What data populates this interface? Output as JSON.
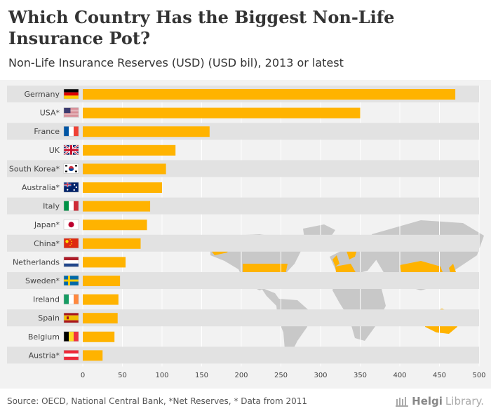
{
  "header": {
    "title": "Which Country Has the Biggest Non-Life Insurance Pot?",
    "subtitle": "Non-Life Insurance Reserves (USD) (USD bil), 2013 or latest"
  },
  "footer": {
    "source": "Source: OECD, National Central Bank, *Net Reserves, * Data from 2011",
    "brand_bold": "Helgi",
    "brand_rest": "Library."
  },
  "colors": {
    "bar": "#ffb300",
    "row_band": "#e2e2e2",
    "map_land": "#c8c8c8",
    "map_highlight": "#ffb300"
  },
  "chart_data": {
    "type": "bar",
    "orientation": "horizontal",
    "title": "Non-Life Insurance Reserves (USD) (USD bil), 2013 or latest",
    "xlabel": "",
    "ylabel": "",
    "xlim": [
      0,
      500
    ],
    "xticks": [
      0,
      50,
      100,
      150,
      200,
      250,
      300,
      350,
      400,
      450,
      500
    ],
    "grid": true,
    "categories": [
      "Germany",
      "USA*",
      "France",
      "UK",
      "South Korea*",
      "Australia*",
      "Italy",
      "Japan*",
      "China*",
      "Netherlands",
      "Sweden*",
      "Ireland",
      "Spain",
      "Belgium",
      "Austria*"
    ],
    "flags": [
      "flag-germany",
      "flag-usa",
      "flag-france",
      "flag-uk",
      "flag-south-korea",
      "flag-australia",
      "flag-italy",
      "flag-japan",
      "flag-china",
      "flag-netherlands",
      "flag-sweden",
      "flag-ireland",
      "flag-spain",
      "flag-belgium",
      "flag-austria"
    ],
    "values": [
      470,
      350,
      160,
      117,
      105,
      100,
      85,
      81,
      73,
      54,
      47,
      45,
      44,
      40,
      25
    ]
  }
}
